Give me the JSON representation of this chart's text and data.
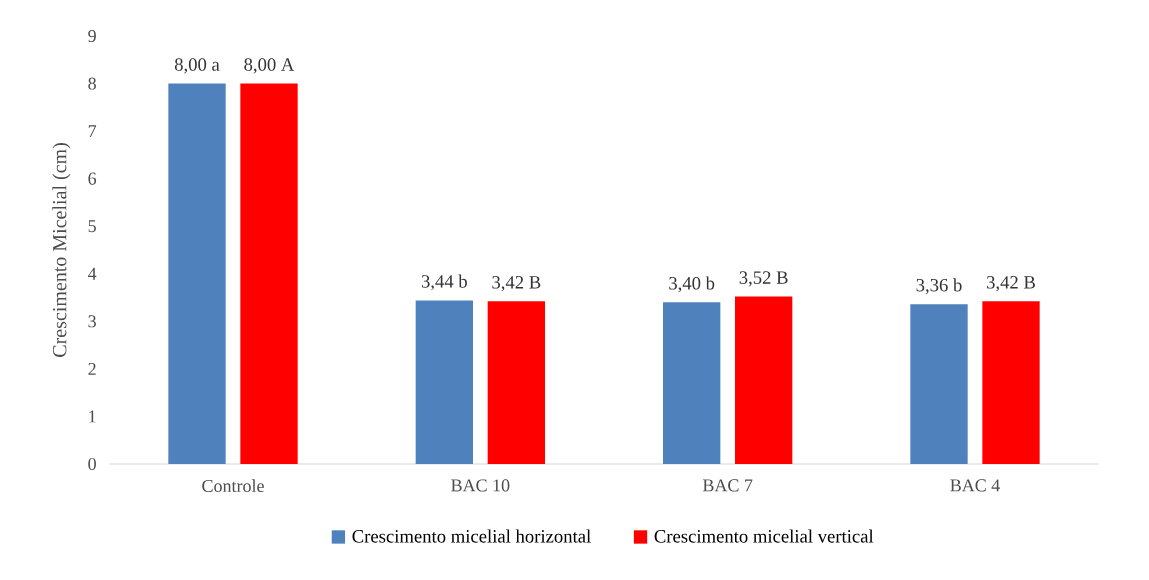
{
  "chart_data": {
    "type": "bar",
    "ylabel": "Crescimento Micelial (cm)",
    "categories": [
      "Controle",
      "BAC 10",
      "BAC 7",
      "BAC 4"
    ],
    "series": [
      {
        "name": "Crescimento micelial horizontal",
        "color": "#4f81bd",
        "values": [
          8.0,
          3.44,
          3.4,
          3.36
        ],
        "value_labels": [
          "8,00 a",
          "3,44 b",
          "3,40 b",
          "3,36 b"
        ]
      },
      {
        "name": "Crescimento micelial vertical",
        "color": "#ff0000",
        "values": [
          8.0,
          3.42,
          3.52,
          3.42
        ],
        "value_labels": [
          "8,00 A",
          "3,42 B",
          "3,52 B",
          "3,42 B"
        ]
      }
    ],
    "ylim": [
      0,
      9
    ],
    "yticks": [
      0,
      1,
      2,
      3,
      4,
      5,
      6,
      7,
      8,
      9
    ],
    "grid": false,
    "legend": "bottom"
  }
}
